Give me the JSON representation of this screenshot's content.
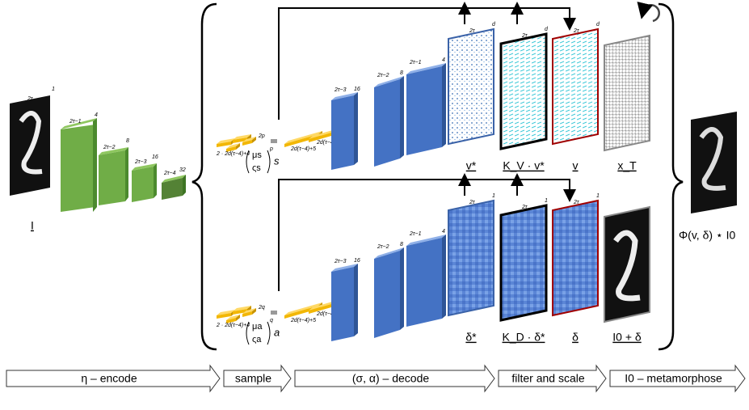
{
  "input": {
    "label": "I"
  },
  "encoder": {
    "layers": [
      {
        "size": "2τ",
        "channels": "1"
      },
      {
        "size": "2τ−1",
        "channels": "4"
      },
      {
        "size": "2τ−2",
        "channels": "8"
      },
      {
        "size": "2τ−3",
        "channels": "16"
      },
      {
        "size": "2τ−4",
        "channels": "32"
      }
    ]
  },
  "velocity_branch": {
    "mu": "μs",
    "sigma": "ςs",
    "latent": "s",
    "dims": [
      "2 · 2d(τ−4)+4",
      "2p",
      "p",
      "2d(τ−4)+5",
      "2d(τ−4)+5"
    ],
    "decoder": [
      {
        "size": "2τ−3",
        "channels": "16"
      },
      {
        "size": "2τ−2",
        "channels": "8"
      },
      {
        "size": "2τ−1",
        "channels": "4"
      }
    ],
    "panels": [
      {
        "label": "v*",
        "size": "2τ",
        "channels": "d"
      },
      {
        "label": "K_V · v*",
        "size": "2τ",
        "channels": "d"
      },
      {
        "label": "v",
        "size": "2τ",
        "channels": "d"
      },
      {
        "label": "x_T"
      }
    ]
  },
  "intensity_branch": {
    "mu": "μa",
    "sigma": "ςa",
    "latent": "a",
    "dims": [
      "2 · 2d(τ−4)+4",
      "2q",
      "q",
      "2d(τ−4)+5",
      "2d(τ−4)+5"
    ],
    "decoder": [
      {
        "size": "2τ−3",
        "channels": "16"
      },
      {
        "size": "2τ−2",
        "channels": "8"
      },
      {
        "size": "2τ−1",
        "channels": "4"
      }
    ],
    "panels": [
      {
        "label": "δ*",
        "size": "2τ",
        "channels": "1"
      },
      {
        "label": "K_D · δ*",
        "size": "2τ",
        "channels": "1"
      },
      {
        "label": "δ",
        "size": "2τ",
        "channels": "1"
      },
      {
        "label": "I0 + δ"
      }
    ]
  },
  "output": {
    "label": "Φ(v, δ) ⋆ I0"
  },
  "stages": [
    "η – encode",
    "sample",
    "(σ, α) – decode",
    "filter and scale",
    "I0 – metamorphose"
  ]
}
